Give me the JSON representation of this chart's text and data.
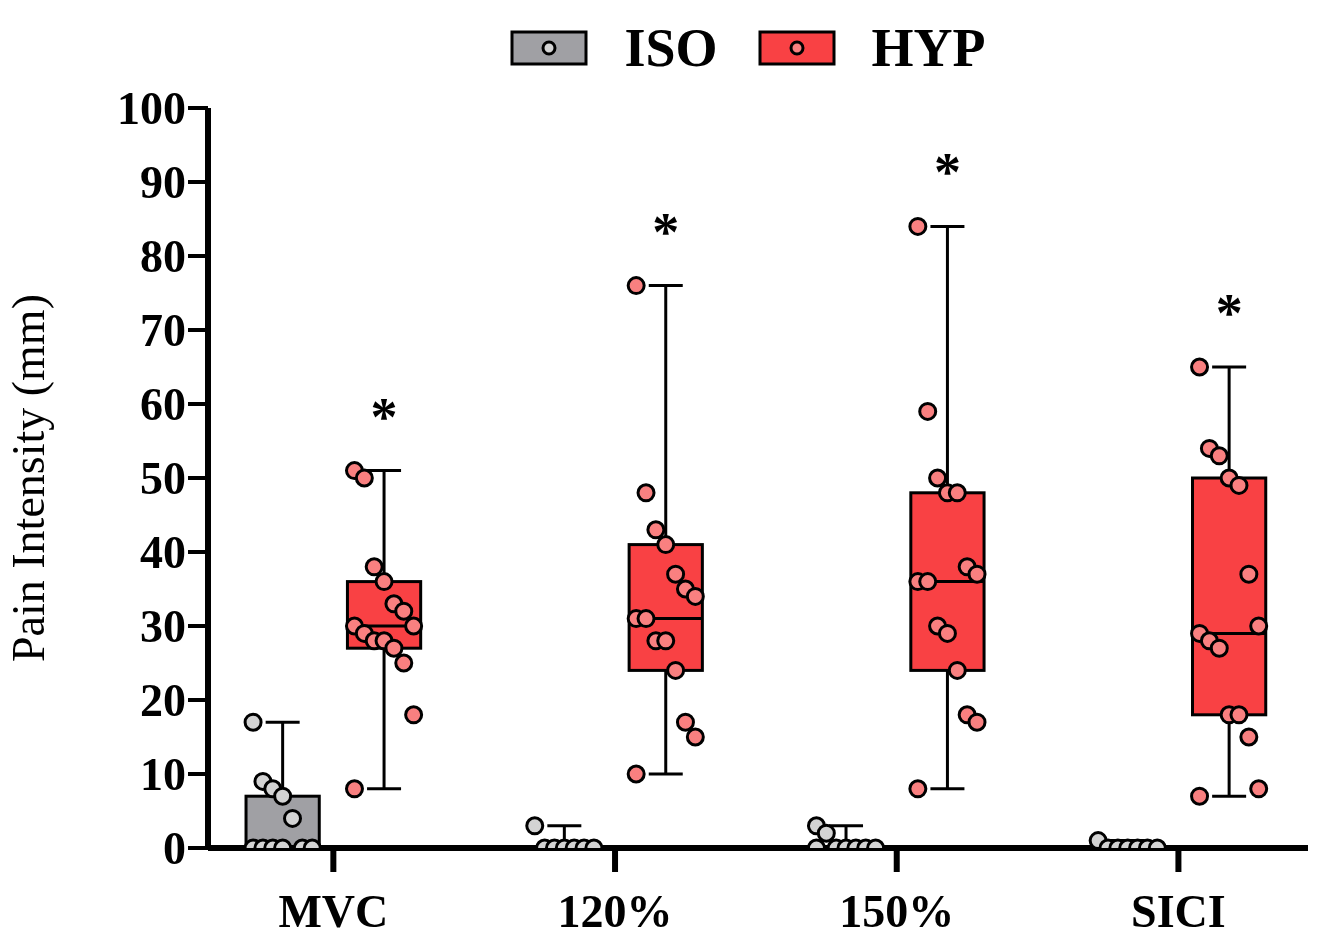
{
  "chart_data": {
    "type": "box",
    "ylabel": "Pain Intensity (mm)",
    "categories": [
      "MVC",
      "120%",
      "150%",
      "SICI"
    ],
    "ylim": [
      0,
      100
    ],
    "yticks": [
      0,
      10,
      20,
      30,
      40,
      50,
      60,
      70,
      80,
      90,
      100
    ],
    "legend": "top",
    "series": [
      {
        "name": "ISO",
        "color": "#a0a0a4",
        "boxes": [
          {
            "low": 0,
            "q1": 0,
            "median": 0,
            "q3": 7,
            "high": 17
          },
          {
            "low": 0,
            "q1": 0,
            "median": 0,
            "q3": 0,
            "high": 3
          },
          {
            "low": 0,
            "q1": 0,
            "median": 0,
            "q3": 0,
            "high": 3
          },
          {
            "low": 0,
            "q1": 0,
            "median": 0,
            "q3": 0,
            "high": 1
          }
        ]
      },
      {
        "name": "HYP",
        "color": "#f94144",
        "boxes": [
          {
            "low": 8,
            "q1": 27,
            "median": 30,
            "q3": 36,
            "high": 51
          },
          {
            "low": 10,
            "q1": 24,
            "median": 31,
            "q3": 41,
            "high": 76
          },
          {
            "low": 8,
            "q1": 24,
            "median": 36,
            "q3": 48,
            "high": 84
          },
          {
            "low": 7,
            "q1": 18,
            "median": 29,
            "q3": 50,
            "high": 65
          }
        ]
      },
      {
        "type": "scatter",
        "color": "#d3d3d3",
        "x": [
          "MVC",
          "MVC",
          "MVC",
          "MVC",
          "MVC",
          "MVC",
          "MVC",
          "MVC",
          "MVC",
          "MVC",
          "MVC",
          "120%",
          "120%",
          "120%",
          "120%",
          "120%",
          "120%",
          "120%",
          "150%",
          "150%",
          "150%",
          "150%",
          "150%",
          "150%",
          "150%",
          "150%",
          "SICI",
          "SICI",
          "SICI",
          "SICI",
          "SICI",
          "SICI",
          "SICI"
        ],
        "values": [
          17,
          9,
          8,
          7,
          4,
          0,
          0,
          0,
          0,
          0,
          0,
          3,
          0,
          0,
          0,
          0,
          0,
          0,
          3,
          2,
          0,
          0,
          0,
          0,
          0,
          0,
          1,
          0,
          0,
          0,
          0,
          0,
          0
        ]
      },
      {
        "type": "scatter",
        "color": "#f98080",
        "x": [
          "MVC",
          "MVC",
          "MVC",
          "MVC",
          "MVC",
          "MVC",
          "MVC",
          "MVC",
          "MVC",
          "MVC",
          "MVC",
          "MVC",
          "MVC",
          "MVC",
          "MVC",
          "120%",
          "120%",
          "120%",
          "120%",
          "120%",
          "120%",
          "120%",
          "120%",
          "120%",
          "120%",
          "120%",
          "120%",
          "120%",
          "120%",
          "120%",
          "150%",
          "150%",
          "150%",
          "150%",
          "150%",
          "150%",
          "150%",
          "150%",
          "150%",
          "150%",
          "150%",
          "150%",
          "150%",
          "150%",
          "150%",
          "SICI",
          "SICI",
          "SICI",
          "SICI",
          "SICI",
          "SICI",
          "SICI",
          "SICI",
          "SICI",
          "SICI",
          "SICI",
          "SICI",
          "SICI",
          "SICI",
          "SICI"
        ],
        "values": [
          51,
          50,
          38,
          36,
          33,
          32,
          30,
          30,
          29,
          28,
          28,
          27,
          25,
          18,
          8,
          76,
          48,
          43,
          41,
          37,
          35,
          34,
          31,
          31,
          28,
          28,
          24,
          17,
          15,
          10,
          84,
          59,
          50,
          48,
          48,
          38,
          37,
          36,
          36,
          30,
          29,
          24,
          18,
          17,
          8,
          65,
          54,
          53,
          50,
          49,
          37,
          30,
          29,
          28,
          27,
          18,
          18,
          15,
          8,
          7
        ]
      }
    ],
    "annotations": [
      "*",
      "*",
      "*",
      "*"
    ]
  }
}
